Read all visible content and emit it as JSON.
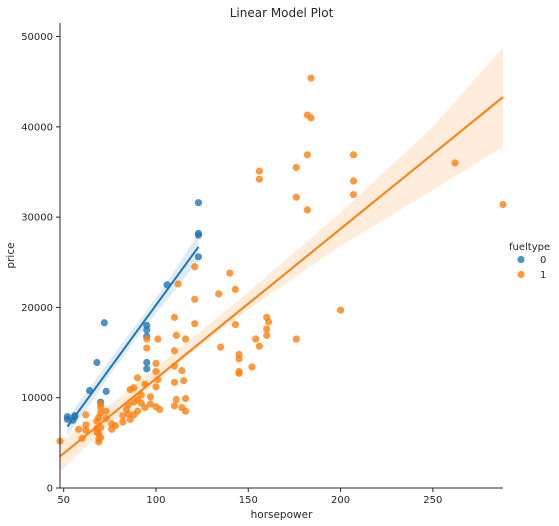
{
  "chart_data": {
    "type": "scatter",
    "title": "Linear Model Plot",
    "xlabel": "horsepower",
    "ylabel": "price",
    "xlim": [
      48,
      288
    ],
    "ylim": [
      0,
      51500
    ],
    "xticks": [
      50,
      100,
      150,
      200,
      250
    ],
    "yticks": [
      0,
      10000,
      20000,
      30000,
      40000,
      50000
    ],
    "grid": false,
    "legend": {
      "title": "fueltype",
      "placement": "right",
      "entries": [
        {
          "label": "0",
          "color": "#1f77b4"
        },
        {
          "label": "1",
          "color": "#ff7f0e"
        }
      ]
    },
    "series": [
      {
        "name": "0",
        "color": "#1f77b4",
        "points": [
          [
            52,
            7900
          ],
          [
            52,
            7600
          ],
          [
            55,
            7500
          ],
          [
            56,
            7900
          ],
          [
            56,
            8000
          ],
          [
            64,
            10800
          ],
          [
            68,
            13900
          ],
          [
            70,
            9500
          ],
          [
            72,
            18300
          ],
          [
            73,
            10700
          ],
          [
            95,
            17500
          ],
          [
            95,
            18000
          ],
          [
            95,
            16800
          ],
          [
            95,
            13900
          ],
          [
            95,
            13200
          ],
          [
            106,
            22500
          ],
          [
            123,
            28000
          ],
          [
            123,
            28200
          ],
          [
            123,
            25600
          ],
          [
            123,
            31600
          ]
        ],
        "regression": {
          "x": [
            52,
            123
          ],
          "y": [
            6800,
            26700
          ]
        },
        "ci_band": {
          "x": [
            52,
            62,
            75,
            90,
            105,
            123
          ],
          "lower": [
            5800,
            8600,
            12500,
            16700,
            20600,
            25200
          ],
          "upper": [
            7800,
            10500,
            14200,
            18300,
            22500,
            28200
          ]
        }
      },
      {
        "name": "1",
        "color": "#ff7f0e",
        "points": [
          [
            48,
            5200
          ],
          [
            58,
            6500
          ],
          [
            60,
            5500
          ],
          [
            62,
            6400
          ],
          [
            62,
            7000
          ],
          [
            62,
            8100
          ],
          [
            68,
            6200
          ],
          [
            68,
            6600
          ],
          [
            68,
            7400
          ],
          [
            69,
            5100
          ],
          [
            69,
            5400
          ],
          [
            69,
            6000
          ],
          [
            69,
            7800
          ],
          [
            70,
            5600
          ],
          [
            70,
            8300
          ],
          [
            70,
            8900
          ],
          [
            70,
            9300
          ],
          [
            70,
            6700
          ],
          [
            73,
            7700
          ],
          [
            73,
            8500
          ],
          [
            76,
            6500
          ],
          [
            76,
            7100
          ],
          [
            78,
            6900
          ],
          [
            82,
            7300
          ],
          [
            82,
            8000
          ],
          [
            84,
            8700
          ],
          [
            85,
            8200
          ],
          [
            85,
            9200
          ],
          [
            86,
            7600
          ],
          [
            86,
            10900
          ],
          [
            88,
            8100
          ],
          [
            88,
            9500
          ],
          [
            88,
            11100
          ],
          [
            90,
            8500
          ],
          [
            90,
            9800
          ],
          [
            90,
            12200
          ],
          [
            92,
            9400
          ],
          [
            92,
            10300
          ],
          [
            94,
            8900
          ],
          [
            94,
            11500
          ],
          [
            95,
            16500
          ],
          [
            95,
            15500
          ],
          [
            97,
            9300
          ],
          [
            97,
            10100
          ],
          [
            100,
            9000
          ],
          [
            100,
            11200
          ],
          [
            100,
            12900
          ],
          [
            100,
            13800
          ],
          [
            101,
            16500
          ],
          [
            101,
            12000
          ],
          [
            102,
            8700
          ],
          [
            110,
            11700
          ],
          [
            110,
            13500
          ],
          [
            110,
            15200
          ],
          [
            110,
            18900
          ],
          [
            110,
            9100
          ],
          [
            111,
            9800
          ],
          [
            111,
            16900
          ],
          [
            112,
            22600
          ],
          [
            114,
            8900
          ],
          [
            114,
            13000
          ],
          [
            115,
            11900
          ],
          [
            116,
            9900
          ],
          [
            116,
            8500
          ],
          [
            116,
            16500
          ],
          [
            121,
            18200
          ],
          [
            121,
            20900
          ],
          [
            121,
            24500
          ],
          [
            134,
            21500
          ],
          [
            135,
            15600
          ],
          [
            140,
            23800
          ],
          [
            143,
            22000
          ],
          [
            143,
            18100
          ],
          [
            145,
            14800
          ],
          [
            145,
            14300
          ],
          [
            145,
            12700
          ],
          [
            145,
            12900
          ],
          [
            152,
            13400
          ],
          [
            154,
            16500
          ],
          [
            156,
            35100
          ],
          [
            156,
            34200
          ],
          [
            156,
            15700
          ],
          [
            160,
            18900
          ],
          [
            160,
            16900
          ],
          [
            160,
            17600
          ],
          [
            161,
            18400
          ],
          [
            176,
            16500
          ],
          [
            176,
            35500
          ],
          [
            176,
            32200
          ],
          [
            182,
            36900
          ],
          [
            182,
            30800
          ],
          [
            182,
            41300
          ],
          [
            184,
            41000
          ],
          [
            184,
            45400
          ],
          [
            200,
            19700
          ],
          [
            207,
            36900
          ],
          [
            207,
            34000
          ],
          [
            207,
            32500
          ],
          [
            262,
            36000
          ],
          [
            288,
            31400
          ]
        ],
        "regression": {
          "x": [
            48,
            288
          ],
          "y": [
            3500,
            43300
          ]
        },
        "ci_band": {
          "x": [
            48,
            80,
            110,
            150,
            200,
            250,
            288
          ],
          "lower": [
            1800,
            8000,
            13500,
            19800,
            26800,
            33000,
            37800
          ],
          "upper": [
            5000,
            10000,
            15000,
            21700,
            30500,
            40000,
            48800
          ]
        }
      }
    ]
  }
}
